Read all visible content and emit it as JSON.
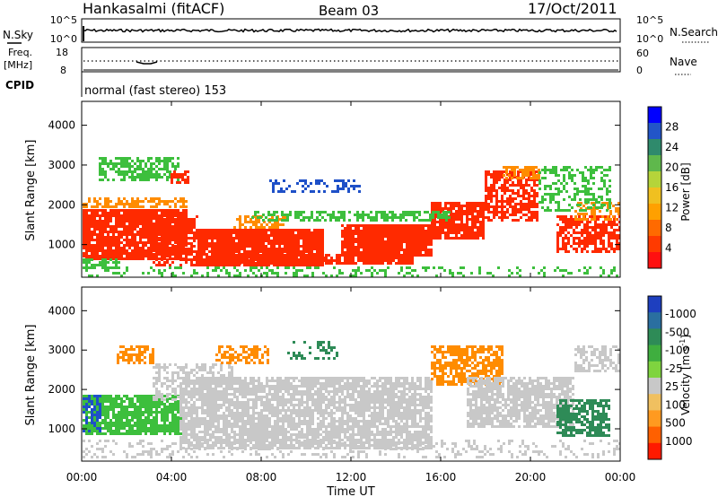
{
  "header": {
    "station": "Hankasalmi (fitACF)",
    "beam": "Beam 03",
    "date": "17/Oct/2011"
  },
  "noise_panel": {
    "left_label": "N.Sky",
    "right_label": "N.Search",
    "left_ticks": [
      "10^5",
      "10^0"
    ],
    "right_ticks": [
      "10^5",
      "10^0"
    ]
  },
  "freq_panel": {
    "left_label_1": "Freq.",
    "left_label_2": "[MHz]",
    "right_label": "Nave",
    "left_ticks": [
      "18",
      "8"
    ],
    "right_ticks": [
      "60",
      "0"
    ]
  },
  "cpid": {
    "label": "CPID",
    "text": "normal (fast stereo) 153"
  },
  "time_axis": {
    "label": "Time UT",
    "ticks": [
      "00:00",
      "04:00",
      "08:00",
      "12:00",
      "16:00",
      "20:00",
      "00:00"
    ]
  },
  "colors": {
    "grey": "#c8c8c8",
    "red": "#ff2a00",
    "orange": "#ff8c00",
    "green": "#3dbf3d",
    "darkgreen": "#2e8b57",
    "blue": "#1e50c8"
  },
  "chart_data": [
    {
      "type": "heatmap",
      "panel": "power",
      "ylabel": "Slant Range [km]",
      "ylim": [
        180,
        4600
      ],
      "yticks": [
        "1000",
        "2000",
        "3000",
        "4000"
      ],
      "xlim_hours": [
        0,
        24
      ],
      "colorbar": {
        "label": "Power [dB]",
        "ticks": [
          "4",
          "8",
          "12",
          "16",
          "20",
          "24",
          "28"
        ],
        "colors": [
          "#0000ff",
          "#2255c8",
          "#2f8a6c",
          "#5fb84c",
          "#b5d43a",
          "#f0c020",
          "#ffa000",
          "#ff6a00",
          "#ff3a00",
          "#ff1010"
        ]
      }
    },
    {
      "type": "heatmap",
      "panel": "velocity",
      "ylabel": "Slant Range [km]",
      "ylim": [
        180,
        4600
      ],
      "yticks": [
        "1000",
        "2000",
        "3000",
        "4000"
      ],
      "xlim_hours": [
        0,
        24
      ],
      "colorbar": {
        "label": "Velocity [m s",
        "unit_sup": "-1",
        "unit_close": "]",
        "ticks": [
          "1000",
          "500",
          "100",
          "25",
          "-25",
          "-100",
          "-500",
          "-1000"
        ],
        "colors": [
          "#1e3fbf",
          "#2a6fa0",
          "#2e8b57",
          "#3fae3f",
          "#7fd43f",
          "#c8c8c8",
          "#f0c060",
          "#ff9a20",
          "#ff6000",
          "#ff1a00"
        ]
      }
    }
  ]
}
